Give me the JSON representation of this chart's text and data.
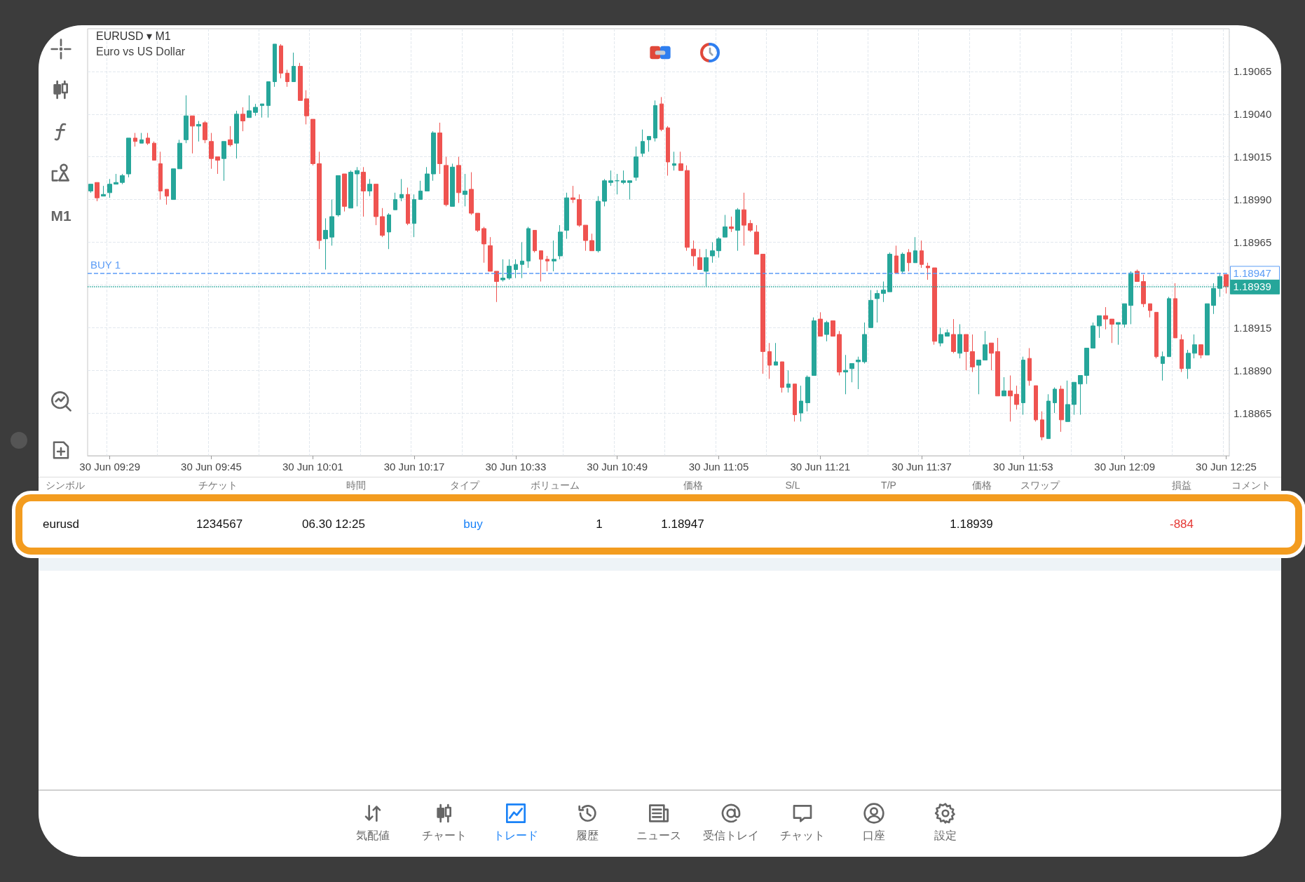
{
  "chart_data": [
    {
      "type": "candlestick",
      "title": "EURUSD ▾ M1",
      "subtitle": "Euro vs US Dollar",
      "annotations": [
        "M1"
      ],
      "categories": [
        null,
        null,
        null,
        "30 Jun 09:29",
        null,
        null,
        null,
        null,
        null,
        null,
        null,
        null,
        null,
        null,
        null,
        null,
        null,
        null,
        null,
        "30 Jun 09:45",
        null,
        null,
        null,
        null,
        null,
        null,
        null,
        null,
        null,
        null,
        null,
        null,
        null,
        null,
        null,
        "30 Jun 10:01",
        null,
        null,
        null,
        null,
        null,
        null,
        null,
        null,
        null,
        null,
        null,
        null,
        null,
        null,
        null,
        "30 Jun 10:17",
        null,
        null,
        null,
        null,
        null,
        null,
        null,
        null,
        null,
        null,
        null,
        null,
        null,
        null,
        null,
        "30 Jun 10:33",
        null,
        null,
        null,
        null,
        null,
        null,
        null,
        null,
        null,
        null,
        null,
        null,
        null,
        null,
        null,
        "30 Jun 10:49",
        null,
        null,
        null,
        null,
        null,
        null,
        null,
        null,
        null,
        null,
        null,
        null,
        null,
        null,
        null,
        "30 Jun 11:05",
        null,
        null,
        null,
        null,
        null,
        null,
        null,
        null,
        null,
        null,
        null,
        null,
        null,
        null,
        null,
        "30 Jun 11:21",
        null,
        null,
        null,
        null,
        null,
        null,
        null,
        null,
        null,
        null,
        null,
        null,
        null,
        null,
        null,
        "30 Jun 11:37",
        null,
        null,
        null,
        null,
        null,
        null,
        null,
        null,
        null,
        null,
        null,
        null,
        null,
        null,
        null,
        "30 Jun 11:53",
        null,
        null,
        null,
        null,
        null,
        null,
        null,
        null,
        null,
        null,
        null,
        null,
        null,
        null,
        null,
        "30 Jun 12:09",
        null,
        null,
        null,
        null,
        null,
        null,
        null,
        null,
        null,
        null,
        null,
        null,
        null,
        null,
        null,
        "30 Jun 12:25"
      ],
      "ohlc": [
        [
          1.18995,
          1.18999,
          1.18994,
          1.18999
        ],
        [
          1.19,
          1.19,
          1.18989,
          1.18991
        ],
        [
          1.18992,
          1.18998,
          1.18992,
          1.18993
        ],
        [
          1.18994,
          1.19002,
          1.18991,
          1.18999
        ],
        [
          1.18999,
          1.19005,
          1.18999,
          1.19
        ],
        [
          1.19,
          1.19005,
          1.18999,
          1.19004
        ],
        [
          1.19005,
          1.19026,
          1.19003,
          1.19026
        ],
        [
          1.19026,
          1.19029,
          1.19021,
          1.19024
        ],
        [
          1.19023,
          1.19029,
          1.19023,
          1.19025
        ],
        [
          1.19026,
          1.19029,
          1.19022,
          1.19023
        ],
        [
          1.19023,
          1.19024,
          1.19013,
          1.19013
        ],
        [
          1.19011,
          1.19018,
          1.1899,
          1.18995
        ],
        [
          1.18996,
          1.18996,
          1.18987,
          1.18992
        ],
        [
          1.1899,
          1.19008,
          1.1899,
          1.19008
        ],
        [
          1.19008,
          1.19025,
          1.19008,
          1.19023
        ],
        [
          1.19025,
          1.19051,
          1.19023,
          1.19039
        ],
        [
          1.19039,
          1.19039,
          1.19017,
          1.19033
        ],
        [
          1.19033,
          1.19036,
          1.19024,
          1.19034
        ],
        [
          1.19035,
          1.19036,
          1.19023,
          1.19025
        ],
        [
          1.19024,
          1.19029,
          1.19008,
          1.19014
        ],
        [
          1.19015,
          1.19015,
          1.19005,
          1.19013
        ],
        [
          1.19014,
          1.19024,
          1.19001,
          1.19024
        ],
        [
          1.19025,
          1.19033,
          1.19021,
          1.19022
        ],
        [
          1.19023,
          1.19042,
          1.19014,
          1.1904
        ],
        [
          1.1904,
          1.19044,
          1.1903,
          1.19036
        ],
        [
          1.19038,
          1.19051,
          1.19038,
          1.19042
        ],
        [
          1.19041,
          1.19046,
          1.19039,
          1.19044
        ],
        [
          1.19045,
          1.19046,
          1.19038,
          1.19046
        ],
        [
          1.19045,
          1.19059,
          1.19038,
          1.19059
        ],
        [
          1.19059,
          1.19081,
          1.19056,
          1.19081
        ],
        [
          1.1908,
          1.19081,
          1.19061,
          1.19064
        ],
        [
          1.19064,
          1.19066,
          1.19056,
          1.19059
        ],
        [
          1.19059,
          1.19076,
          1.19059,
          1.19068
        ],
        [
          1.19068,
          1.1907,
          1.19048,
          1.19048
        ],
        [
          1.19049,
          1.19054,
          1.19034,
          1.19039
        ],
        [
          1.19037,
          1.19037,
          1.1901,
          1.19011
        ],
        [
          1.19011,
          1.19018,
          1.18961,
          1.18966
        ],
        [
          1.18967,
          1.18979,
          1.18949,
          1.18972
        ],
        [
          1.18968,
          1.1899,
          1.18963,
          1.1898
        ],
        [
          1.18981,
          1.19004,
          1.1898,
          1.19004
        ],
        [
          1.19005,
          1.19005,
          1.18983,
          1.18986
        ],
        [
          1.18985,
          1.19007,
          1.18985,
          1.19006
        ],
        [
          1.19005,
          1.19009,
          1.18986,
          1.19007
        ],
        [
          1.19006,
          1.19009,
          1.1898,
          1.18995
        ],
        [
          1.18995,
          1.19002,
          1.18992,
          1.18999
        ],
        [
          1.18999,
          1.18999,
          1.18975,
          1.1898
        ],
        [
          1.1898,
          1.18985,
          1.18968,
          1.18969
        ],
        [
          1.18971,
          1.18982,
          1.18961,
          1.18981
        ],
        [
          1.18984,
          1.18994,
          1.18984,
          1.1899
        ],
        [
          1.18991,
          1.19002,
          1.18989,
          1.18993
        ],
        [
          1.18993,
          1.18997,
          1.18975,
          1.18976
        ],
        [
          1.18976,
          1.18993,
          1.18968,
          1.1899
        ],
        [
          1.1899,
          1.19001,
          1.1899,
          1.18995
        ],
        [
          1.18995,
          1.19009,
          1.18995,
          1.19005
        ],
        [
          1.19005,
          1.1903,
          1.19001,
          1.19029
        ],
        [
          1.19029,
          1.19035,
          1.19005,
          1.19011
        ],
        [
          1.1901,
          1.19015,
          1.18986,
          1.18987
        ],
        [
          1.18986,
          1.19011,
          1.18986,
          1.19009
        ],
        [
          1.1901,
          1.19015,
          1.18988,
          1.18994
        ],
        [
          1.18993,
          1.19005,
          1.18986,
          1.18995
        ],
        [
          1.18996,
          1.19006,
          1.18981,
          1.18982
        ],
        [
          1.18982,
          1.18982,
          1.18971,
          1.18972
        ],
        [
          1.18973,
          1.18974,
          1.18953,
          1.18964
        ],
        [
          1.18963,
          1.18968,
          1.18948,
          1.18948
        ],
        [
          1.18948,
          1.18948,
          1.1893,
          1.18942
        ],
        [
          1.18943,
          1.18955,
          1.18942,
          1.18944
        ],
        [
          1.18944,
          1.18955,
          1.18943,
          1.18951
        ],
        [
          1.18949,
          1.18955,
          1.18944,
          1.18952
        ],
        [
          1.18952,
          1.18965,
          1.18944,
          1.18954
        ],
        [
          1.18954,
          1.18974,
          1.1895,
          1.18973
        ],
        [
          1.18972,
          1.18972,
          1.18959,
          1.1896
        ],
        [
          1.1896,
          1.1896,
          1.18942,
          1.18955
        ],
        [
          1.18955,
          1.18957,
          1.18948,
          1.18954
        ],
        [
          1.18954,
          1.18966,
          1.18948,
          1.18955
        ],
        [
          1.18957,
          1.18975,
          1.18955,
          1.18971
        ],
        [
          1.18972,
          1.18994,
          1.18967,
          1.18991
        ],
        [
          1.18991,
          1.18998,
          1.18988,
          1.1899
        ],
        [
          1.1899,
          1.18993,
          1.18974,
          1.18975
        ],
        [
          1.18975,
          1.18975,
          1.1896,
          1.18966
        ],
        [
          1.18966,
          1.1897,
          1.1896,
          1.1896
        ],
        [
          1.1896,
          1.18992,
          1.18959,
          1.18989
        ],
        [
          1.18989,
          1.19002,
          1.18986,
          1.19001
        ],
        [
          1.19,
          1.19007,
          1.18998,
          1.19001
        ],
        [
          1.19001,
          1.19005,
          1.18993,
          1.19001
        ],
        [
          1.19,
          1.19007,
          1.18999,
          1.19001
        ],
        [
          1.19,
          1.19001,
          1.1899,
          1.19001
        ],
        [
          1.19003,
          1.19021,
          1.19001,
          1.19015
        ],
        [
          1.19017,
          1.19031,
          1.19015,
          1.19024
        ],
        [
          1.19025,
          1.19027,
          1.19018,
          1.19027
        ],
        [
          1.19026,
          1.19048,
          1.19024,
          1.19045
        ],
        [
          1.19046,
          1.1905,
          1.1903,
          1.19031
        ],
        [
          1.19032,
          1.19033,
          1.19004,
          1.19012
        ],
        [
          1.1901,
          1.19018,
          1.19007,
          1.19011
        ],
        [
          1.19011,
          1.19018,
          1.19007,
          1.19007
        ],
        [
          1.19007,
          1.1901,
          1.1896,
          1.18962
        ],
        [
          1.18961,
          1.18966,
          1.18951,
          1.18957
        ],
        [
          1.18956,
          1.18961,
          1.18949,
          1.18949
        ],
        [
          1.18948,
          1.18961,
          1.18939,
          1.18956
        ],
        [
          1.18957,
          1.18965,
          1.18953,
          1.1896
        ],
        [
          1.1896,
          1.18968,
          1.18956,
          1.18967
        ],
        [
          1.18968,
          1.18981,
          1.18968,
          1.18974
        ],
        [
          1.18974,
          1.1898,
          1.18971,
          1.18973
        ],
        [
          1.18972,
          1.18985,
          1.1896,
          1.18984
        ],
        [
          1.18984,
          1.18994,
          1.18963,
          1.18975
        ],
        [
          1.18976,
          1.18978,
          1.18971,
          1.18972
        ],
        [
          1.18971,
          1.18975,
          1.18958,
          1.18958
        ],
        [
          1.18958,
          1.18958,
          1.18888,
          1.18901
        ],
        [
          1.18901,
          1.18906,
          1.18885,
          1.18893
        ],
        [
          1.18893,
          1.18906,
          1.18893,
          1.18895
        ],
        [
          1.18895,
          1.18895,
          1.18877,
          1.1888
        ],
        [
          1.1888,
          1.1889,
          1.18877,
          1.18882
        ],
        [
          1.18882,
          1.18882,
          1.1886,
          1.18864
        ],
        [
          1.18865,
          1.18881,
          1.1886,
          1.18872
        ],
        [
          1.18871,
          1.18887,
          1.18866,
          1.18886
        ],
        [
          1.18887,
          1.18921,
          1.18887,
          1.18919
        ],
        [
          1.1892,
          1.18924,
          1.1891,
          1.1891
        ],
        [
          1.18911,
          1.18919,
          1.18907,
          1.18918
        ],
        [
          1.18919,
          1.18919,
          1.1891,
          1.1891
        ],
        [
          1.18911,
          1.18913,
          1.18887,
          1.18889
        ],
        [
          1.18889,
          1.18899,
          1.18876,
          1.1889
        ],
        [
          1.18891,
          1.18894,
          1.18883,
          1.18894
        ],
        [
          1.18895,
          1.18898,
          1.18879,
          1.18896
        ],
        [
          1.18895,
          1.18918,
          1.18894,
          1.18911
        ],
        [
          1.18915,
          1.18937,
          1.18915,
          1.18931
        ],
        [
          1.18932,
          1.18937,
          1.18918,
          1.18935
        ],
        [
          1.18935,
          1.18942,
          1.1893,
          1.18937
        ],
        [
          1.18936,
          1.18959,
          1.18936,
          1.18958
        ],
        [
          1.18957,
          1.18963,
          1.18947,
          1.18947
        ],
        [
          1.18948,
          1.18959,
          1.18947,
          1.18958
        ],
        [
          1.18959,
          1.18961,
          1.18948,
          1.18953
        ],
        [
          1.18953,
          1.18968,
          1.18953,
          1.1896
        ],
        [
          1.1896,
          1.18966,
          1.1895,
          1.18952
        ],
        [
          1.18951,
          1.18953,
          1.18943,
          1.1895
        ],
        [
          1.1895,
          1.1895,
          1.18905,
          1.18907
        ],
        [
          1.18906,
          1.18915,
          1.18904,
          1.18911
        ],
        [
          1.1891,
          1.18914,
          1.1891,
          1.18912
        ],
        [
          1.18911,
          1.1892,
          1.189,
          1.18901
        ],
        [
          1.189,
          1.18917,
          1.18897,
          1.18911
        ],
        [
          1.18911,
          1.18911,
          1.1889,
          1.18901
        ],
        [
          1.18901,
          1.18911,
          1.18889,
          1.18892
        ],
        [
          1.18893,
          1.18896,
          1.18876,
          1.18896
        ],
        [
          1.18896,
          1.18913,
          1.18896,
          1.18905
        ],
        [
          1.18906,
          1.18906,
          1.1889,
          1.189
        ],
        [
          1.18901,
          1.18909,
          1.18875,
          1.18875
        ],
        [
          1.18875,
          1.18886,
          1.18875,
          1.18878
        ],
        [
          1.18878,
          1.18887,
          1.1886,
          1.18875
        ],
        [
          1.18876,
          1.18881,
          1.18867,
          1.1887
        ],
        [
          1.18871,
          1.18898,
          1.18864,
          1.18896
        ],
        [
          1.18897,
          1.18903,
          1.18881,
          1.18884
        ],
        [
          1.18881,
          1.18881,
          1.1886,
          1.18861
        ],
        [
          1.18861,
          1.18866,
          1.18849,
          1.18851
        ],
        [
          1.1885,
          1.18876,
          1.1885,
          1.18872
        ],
        [
          1.18871,
          1.1888,
          1.18865,
          1.18879
        ],
        [
          1.18879,
          1.18881,
          1.18854,
          1.18861
        ],
        [
          1.1886,
          1.18884,
          1.1886,
          1.1887
        ],
        [
          1.1887,
          1.18883,
          1.18864,
          1.18883
        ],
        [
          1.18882,
          1.18887,
          1.18864,
          1.18887
        ],
        [
          1.18887,
          1.18903,
          1.18882,
          1.18903
        ],
        [
          1.18903,
          1.18918,
          1.18903,
          1.18916
        ],
        [
          1.18916,
          1.18922,
          1.18909,
          1.18922
        ],
        [
          1.18922,
          1.18927,
          1.18914,
          1.1892
        ],
        [
          1.1892,
          1.1892,
          1.18906,
          1.18917
        ],
        [
          1.18917,
          1.18918,
          1.18905,
          1.18918
        ],
        [
          1.18917,
          1.18929,
          1.18915,
          1.18929
        ],
        [
          1.18928,
          1.18948,
          1.18917,
          1.18947
        ],
        [
          1.18948,
          1.18949,
          1.18942,
          1.18942
        ],
        [
          1.18942,
          1.18946,
          1.18927,
          1.18929
        ],
        [
          1.18929,
          1.18929,
          1.18921,
          1.18925
        ],
        [
          1.18924,
          1.18924,
          1.18897,
          1.18898
        ],
        [
          1.18894,
          1.18901,
          1.18884,
          1.18898
        ],
        [
          1.18898,
          1.18933,
          1.18898,
          1.18932
        ],
        [
          1.18932,
          1.18941,
          1.18909,
          1.18909
        ],
        [
          1.18908,
          1.18911,
          1.18889,
          1.18891
        ],
        [
          1.18891,
          1.18902,
          1.18885,
          1.189
        ],
        [
          1.189,
          1.18911,
          1.18897,
          1.18905
        ],
        [
          1.18905,
          1.18905,
          1.18897,
          1.18899
        ],
        [
          1.18899,
          1.18929,
          1.18899,
          1.18929
        ],
        [
          1.18928,
          1.18941,
          1.18923,
          1.18938
        ],
        [
          1.18938,
          1.18947,
          1.18933,
          1.18945
        ],
        [
          1.18946,
          1.18946,
          1.18935,
          1.18939
        ]
      ],
      "colors": [
        "#26a69a",
        "#ef5350",
        "#26a69a",
        "#26a69a",
        "#26a69a",
        "#26a69a",
        "#26a69a",
        "#ef5350",
        "#26a69a",
        "#ef5350",
        "#ef5350",
        "#ef5350",
        "#ef5350",
        "#26a69a",
        "#26a69a",
        "#26a69a",
        "#ef5350",
        "#26a69a",
        "#ef5350",
        "#ef5350",
        "#ef5350",
        "#26a69a",
        "#ef5350",
        "#26a69a",
        "#ef5350",
        "#26a69a",
        "#26a69a",
        "#26a69a",
        "#26a69a",
        "#26a69a",
        "#ef5350",
        "#ef5350",
        "#26a69a",
        "#ef5350",
        "#ef5350",
        "#ef5350",
        "#ef5350",
        "#26a69a",
        "#26a69a",
        "#26a69a",
        "#ef5350",
        "#26a69a",
        "#26a69a",
        "#ef5350",
        "#26a69a",
        "#ef5350",
        "#ef5350",
        "#26a69a",
        "#26a69a",
        "#26a69a",
        "#ef5350",
        "#26a69a",
        "#26a69a",
        "#26a69a",
        "#26a69a",
        "#ef5350",
        "#ef5350",
        "#26a69a",
        "#ef5350",
        "#26a69a",
        "#ef5350",
        "#ef5350",
        "#ef5350",
        "#ef5350",
        "#ef5350",
        "#26a69a",
        "#26a69a",
        "#26a69a",
        "#26a69a",
        "#26a69a",
        "#ef5350",
        "#ef5350",
        "#ef5350",
        "#26a69a",
        "#26a69a",
        "#26a69a",
        "#ef5350",
        "#ef5350",
        "#ef5350",
        "#ef5350",
        "#26a69a",
        "#26a69a",
        "#26a69a",
        "#26a69a",
        "#26a69a",
        "#26a69a",
        "#26a69a",
        "#26a69a",
        "#26a69a",
        "#26a69a",
        "#ef5350",
        "#ef5350",
        "#26a69a",
        "#ef5350",
        "#ef5350",
        "#ef5350",
        "#ef5350",
        "#26a69a",
        "#26a69a",
        "#26a69a",
        "#26a69a",
        "#ef5350",
        "#26a69a",
        "#ef5350",
        "#ef5350",
        "#ef5350",
        "#ef5350",
        "#ef5350",
        "#26a69a",
        "#ef5350",
        "#26a69a",
        "#ef5350",
        "#26a69a",
        "#26a69a",
        "#26a69a",
        "#ef5350",
        "#26a69a",
        "#ef5350",
        "#ef5350",
        "#26a69a",
        "#26a69a",
        "#26a69a",
        "#26a69a",
        "#26a69a",
        "#26a69a",
        "#26a69a",
        "#26a69a",
        "#ef5350",
        "#26a69a",
        "#ef5350",
        "#26a69a",
        "#ef5350",
        "#ef5350",
        "#ef5350",
        "#26a69a",
        "#26a69a",
        "#ef5350",
        "#26a69a",
        "#ef5350",
        "#ef5350",
        "#26a69a",
        "#26a69a",
        "#ef5350",
        "#ef5350",
        "#26a69a",
        "#ef5350",
        "#ef5350",
        "#26a69a",
        "#ef5350",
        "#ef5350",
        "#ef5350",
        "#26a69a",
        "#26a69a",
        "#ef5350",
        "#26a69a",
        "#26a69a",
        "#26a69a",
        "#26a69a",
        "#26a69a",
        "#26a69a",
        "#ef5350",
        "#ef5350",
        "#26a69a",
        "#26a69a",
        "#26a69a",
        "#ef5350",
        "#ef5350",
        "#ef5350",
        "#ef5350",
        "#26a69a",
        "#26a69a",
        "#ef5350",
        "#ef5350",
        "#26a69a",
        "#26a69a",
        "#ef5350",
        "#26a69a",
        "#26a69a",
        "#26a69a",
        "#ef5350"
      ],
      "ylim": [
        1.1884,
        1.1909
      ],
      "yticks": [
        1.18865,
        {
          "value": 1.1889,
          "label": "1.18890"
        },
        1.18915,
        {
          "value": 1.1894,
          "label": null
        },
        1.18965,
        {
          "value": 1.1899,
          "label": "1.18990"
        },
        1.19015,
        {
          "value": 1.1904,
          "label": "1.19040"
        },
        1.19065
      ],
      "grid": true,
      "ref_lines": [
        {
          "axis": "y",
          "value": 1.18947,
          "label": "BUY 1",
          "color": "#5b9cf6",
          "line_style": "dashed"
        },
        {
          "axis": "y",
          "value": 1.18939,
          "color": "#26a69a",
          "line_style": "dotted"
        }
      ]
    },
    {
      "type": "other",
      "categories": [
        "シンボル",
        "チケット",
        "時間",
        "タイプ",
        "ボリューム",
        "価格",
        "S/L",
        "T/P",
        "価格",
        "スワップ",
        "損益",
        "コメント"
      ],
      "cells": [
        [
          "eurusd",
          "1234567",
          "06.30 12:25",
          "buy",
          "1",
          "1.18947",
          null,
          null,
          "1.18939",
          null,
          "-884",
          null
        ]
      ]
    },
    {
      "type": "other",
      "categories": [
        "気配値",
        "チャート",
        "トレード",
        "履歴",
        "ニュース",
        "受信トレイ",
        "チャット",
        "口座",
        "設定"
      ]
    }
  ]
}
